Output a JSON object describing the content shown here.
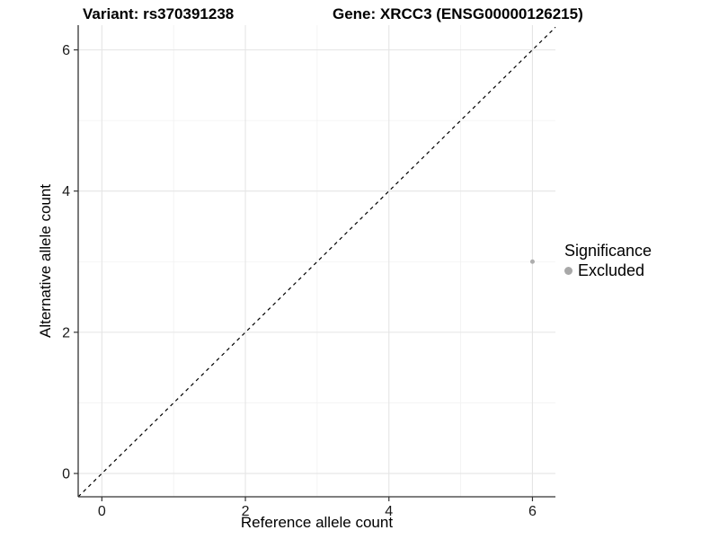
{
  "titles": {
    "variant": "Variant: rs370391238",
    "gene": "Gene: XRCC3 (ENSG00000126215)"
  },
  "chart_data": {
    "type": "scatter",
    "xlabel": "Reference allele count",
    "ylabel": "Alternative allele count",
    "xlim": [
      -0.33,
      6.32
    ],
    "ylim": [
      -0.33,
      6.35
    ],
    "xticks": [
      0,
      2,
      4,
      6
    ],
    "yticks": [
      0,
      2,
      4,
      6
    ],
    "minor_ticks": [
      1,
      3,
      5
    ],
    "grid": "major and minor, light gray on white",
    "points": [
      {
        "x": 6,
        "y": 3,
        "series": "Excluded"
      }
    ],
    "identity_line": {
      "equation": "y = x",
      "style": "dashed",
      "color": "#000000"
    },
    "legend": {
      "title": "Significance",
      "position": "right",
      "entries": [
        {
          "label": "Excluded",
          "color": "#A8A8A8"
        }
      ]
    }
  },
  "colors": {
    "axis_line": "#333333",
    "grid_major": "#e5e5e5",
    "grid_minor": "#f1f1f1",
    "point": "#ADADAD",
    "text": "#000000",
    "background": "#ffffff"
  }
}
